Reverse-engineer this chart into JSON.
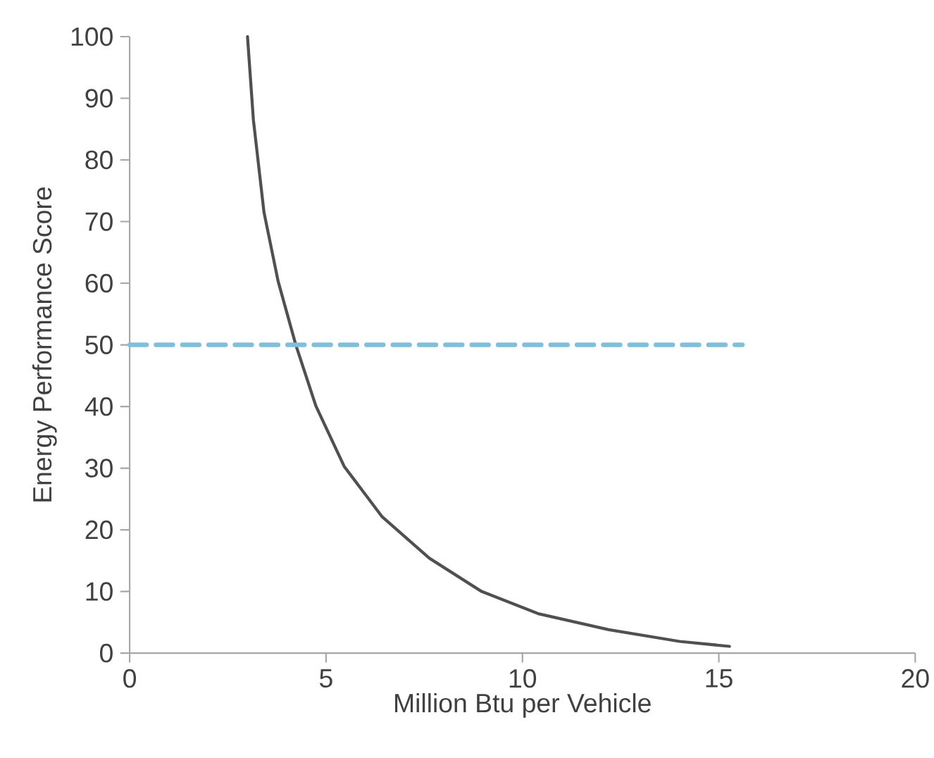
{
  "chart_data": {
    "type": "line",
    "xlabel": "Million Btu per Vehicle",
    "ylabel": "Energy Performance Score",
    "xlim": [
      0,
      20
    ],
    "ylim": [
      0,
      100
    ],
    "xticks": [
      0,
      5,
      10,
      15,
      20
    ],
    "yticks": [
      0,
      10,
      20,
      30,
      40,
      50,
      60,
      70,
      80,
      90,
      100
    ],
    "grid": false,
    "series": [
      {
        "color": "#505050",
        "line_style": "solid",
        "x": [
          3,
          3.15,
          3.42,
          3.78,
          4.23,
          4.74,
          5.46,
          6.43,
          7.63,
          8.96,
          10.4,
          12.2,
          14.0,
          15.27
        ],
        "values": [
          100,
          86.5,
          71.5,
          60.3,
          50,
          40.1,
          30.3,
          22.1,
          15.4,
          10,
          6.4,
          3.8,
          1.9,
          1.1
        ]
      },
      {
        "color": "#7fbfdc",
        "line_style": "dashed",
        "x": [
          0,
          15.6
        ],
        "values": [
          50,
          50
        ]
      }
    ]
  }
}
